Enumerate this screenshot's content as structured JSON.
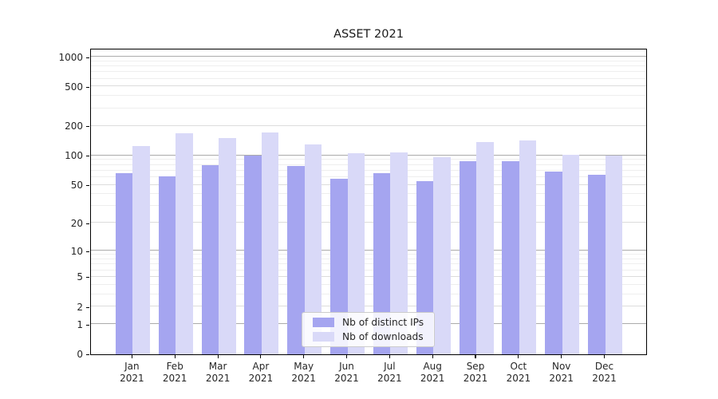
{
  "chart_data": {
    "type": "bar",
    "title": "ASSET 2021",
    "x_months": [
      "Jan",
      "Feb",
      "Mar",
      "Apr",
      "May",
      "Jun",
      "Jul",
      "Aug",
      "Sep",
      "Oct",
      "Nov",
      "Dec"
    ],
    "x_year": "2021",
    "categories": [
      "Jan 2021",
      "Feb 2021",
      "Mar 2021",
      "Apr 2021",
      "May 2021",
      "Jun 2021",
      "Jul 2021",
      "Aug 2021",
      "Sep 2021",
      "Oct 2021",
      "Nov 2021",
      "Dec 2021"
    ],
    "series": [
      {
        "name": "Nb of distinct IPs",
        "color": "#a5a5f0",
        "values": [
          66,
          61,
          79,
          100,
          78,
          58,
          66,
          55,
          88,
          88,
          68,
          63
        ]
      },
      {
        "name": "Nb of downloads",
        "color": "#d9d9f8",
        "values": [
          125,
          168,
          150,
          172,
          130,
          106,
          107,
          96,
          137,
          141,
          101,
          100
        ]
      }
    ],
    "y_scale": "log1p",
    "ylim": [
      0,
      1228
    ],
    "y_ticks_labeled": [
      0,
      1,
      2,
      5,
      10,
      20,
      50,
      100,
      200,
      500,
      1000
    ],
    "y_ticks_minor": [
      3,
      4,
      6,
      7,
      8,
      9,
      30,
      40,
      60,
      70,
      80,
      90,
      300,
      400,
      600,
      700,
      800,
      900
    ],
    "grid": "on",
    "legend_position": "lower center",
    "colors": {
      "frame": "#000000",
      "grid_major": "#ababab",
      "grid_mid": "#dcdcdc",
      "grid_minor": "#eeeeee",
      "text": "#262626"
    }
  }
}
